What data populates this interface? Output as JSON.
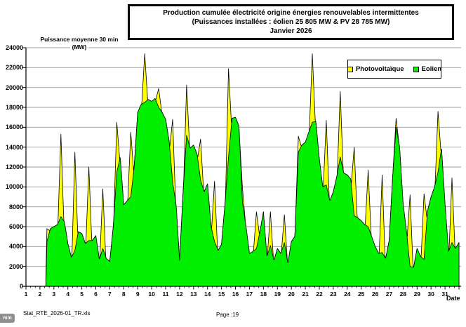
{
  "page": {
    "title_box": {
      "line1": "Production cumulée électricité origine énergies renouvelables intermittentes",
      "line2": "(Puissances installées : éolien 25 805 MW & PV 28 785 MW)",
      "line3": "Janvier 2026"
    },
    "footer": {
      "file_name": "Stat_RTE_2026-01_TR.xls",
      "page_label": "Page :19",
      "corner_badge": "mm"
    }
  },
  "chart_data": {
    "type": "area",
    "stacked": true,
    "title": "Production cumulée électricité origine énergies renouvelables intermittentes (Puissances installées : éolien 25 805 MW & PV 28 785 MW) Janvier 2026",
    "ylabel_line1": "Puissance moyenne 30 min",
    "ylabel_line2": "(MW)",
    "xlabel": "Date",
    "ylim": [
      0,
      24000
    ],
    "ytick_step": 2000,
    "grid": "horizontal",
    "grid_color": "#9b9b9b",
    "x_categories_days": [
      1,
      2,
      3,
      4,
      5,
      6,
      7,
      8,
      9,
      10,
      11,
      12,
      13,
      14,
      15,
      16,
      17,
      18,
      19,
      20,
      21,
      22,
      23,
      24,
      25,
      26,
      27,
      28,
      29,
      30,
      31
    ],
    "data_start_day": 2.42,
    "data_end_day": 32.0,
    "legend": {
      "position": "top-right",
      "entries": [
        {
          "label": "Photovoltaïque",
          "color": "#FFFF00"
        },
        {
          "label": "Eolien",
          "color": "#00F000"
        }
      ]
    },
    "eolien_series": {
      "name": "Eolien",
      "color": "#00F000",
      "unit": "MW",
      "start_day": 2.5,
      "step_days": 0.25,
      "values_mw": [
        4500,
        5800,
        6000,
        6200,
        7000,
        6500,
        4300,
        2900,
        3600,
        5500,
        5300,
        4300,
        4600,
        4600,
        5100,
        2700,
        3800,
        2800,
        2500,
        6000,
        11500,
        13000,
        8200,
        8600,
        9000,
        12000,
        17500,
        18300,
        18500,
        18800,
        18600,
        18900,
        18000,
        17500,
        16800,
        14600,
        10500,
        8100,
        2600,
        9500,
        15200,
        13900,
        14200,
        13300,
        10700,
        9500,
        10300,
        6000,
        4500,
        3600,
        4200,
        8300,
        13000,
        16900,
        17000,
        16100,
        8400,
        6000,
        3300,
        3500,
        3800,
        5500,
        7500,
        3000,
        4100,
        2600,
        3800,
        3300,
        4400,
        2300,
        4500,
        5000,
        13500,
        14200,
        14500,
        15500,
        16500,
        16600,
        12800,
        10000,
        10200,
        8600,
        9500,
        11000,
        13000,
        11400,
        11200,
        10800,
        7100,
        6900,
        6600,
        6200,
        6000,
        5000,
        4000,
        3300,
        3400,
        2800,
        4600,
        11000,
        16000,
        14000,
        8300,
        5400,
        2000,
        1900,
        3800,
        3000,
        2700,
        7600,
        9000,
        10000,
        11500,
        13900,
        8300,
        3500,
        4400,
        3800,
        4400
      ]
    },
    "pv_series": {
      "name": "Photovoltaïque",
      "color": "#FFFF00",
      "unit": "MW",
      "spike_center_hour": 12,
      "spike_halfwidth_days": 0.21,
      "noon_total_mw_by_day": [
        0,
        5800,
        15300,
        13500,
        12000,
        9800,
        16500,
        15500,
        23400,
        19900,
        16800,
        20250,
        14800,
        10570,
        21900,
        9900,
        7500,
        7500,
        7200,
        15100,
        23400,
        16700,
        19600,
        14000,
        11700,
        11200,
        16900,
        9200,
        9300,
        17600,
        10900
      ]
    }
  }
}
